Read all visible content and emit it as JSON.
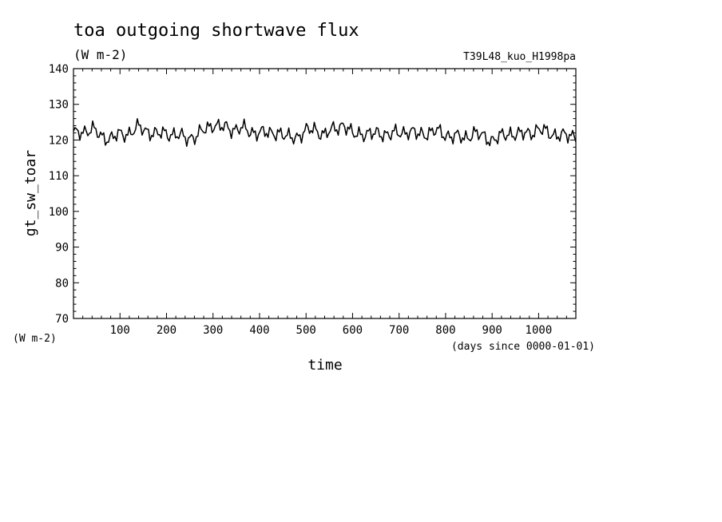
{
  "chart_data": {
    "type": "line",
    "title": "toa outgoing shortwave flux",
    "subtitle": "(W m-2)",
    "run_name": "T39L48_kuo_H1998pa",
    "xlabel": "time",
    "xunits": "(days since 0000-01-01)",
    "ylabel": "gt_sw_toar",
    "yunits": "(W m-2)",
    "xlim": [
      0,
      1080
    ],
    "ylim": [
      70,
      140
    ],
    "xticks": [
      100,
      200,
      300,
      400,
      500,
      600,
      700,
      800,
      900,
      1000
    ],
    "yticks": [
      70,
      80,
      90,
      100,
      110,
      120,
      130,
      140
    ],
    "grid": false,
    "series": [
      {
        "x": [
          0,
          20,
          40,
          60,
          80,
          100,
          120,
          140,
          160,
          180,
          200,
          220,
          240,
          260,
          280,
          300,
          320,
          340,
          360,
          380,
          400,
          420,
          440,
          460,
          480,
          500,
          520,
          540,
          560,
          580,
          600,
          620,
          640,
          660,
          680,
          700,
          720,
          740,
          760,
          780,
          800,
          820,
          840,
          860,
          880,
          900,
          920,
          940,
          960,
          980,
          1000,
          1020,
          1040,
          1060,
          1080
        ],
        "values": [
          121.5,
          122.5,
          123.0,
          121.0,
          120.5,
          121.5,
          122.0,
          123.5,
          122.5,
          121.5,
          122.0,
          121.5,
          120.5,
          121.0,
          122.5,
          124.5,
          123.5,
          123.0,
          123.5,
          122.0,
          122.5,
          121.5,
          122.5,
          120.5,
          121.0,
          122.5,
          123.0,
          121.5,
          123.0,
          124.5,
          121.5,
          122.0,
          121.5,
          122.0,
          121.5,
          122.0,
          122.5,
          121.5,
          122.0,
          122.5,
          121.5,
          121.0,
          120.5,
          122.0,
          121.0,
          120.0,
          121.0,
          122.0,
          121.5,
          122.0,
          123.0,
          122.0,
          121.5,
          121.0,
          121.5
        ]
      }
    ]
  }
}
